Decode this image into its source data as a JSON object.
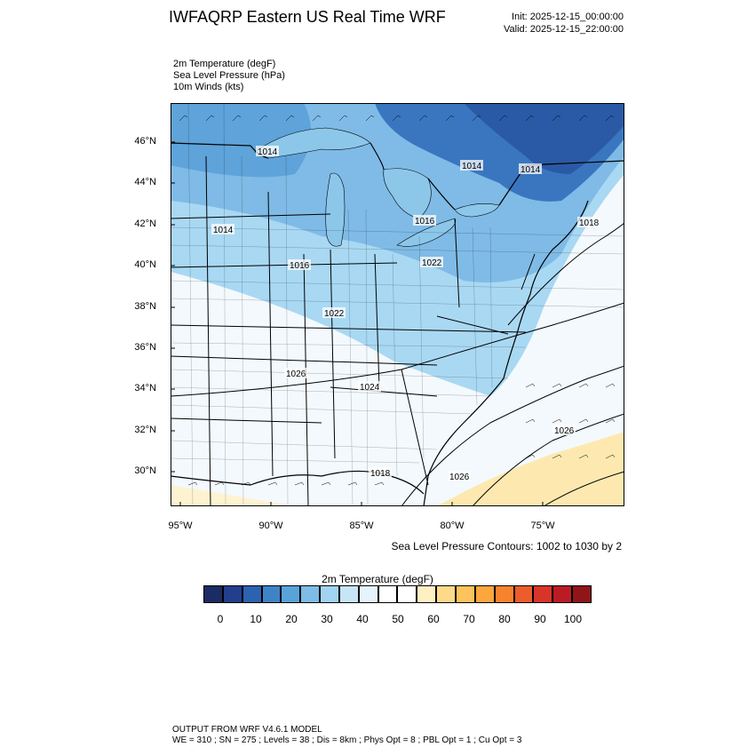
{
  "header": {
    "title": "IWFAQRP Eastern US Real Time WRF",
    "init": "Init: 2025-12-15_00:00:00",
    "valid": "Valid: 2025-12-15_22:00:00"
  },
  "fields": [
    "2m Temperature   (degF)",
    "Sea Level Pressure   (hPa)",
    "10m Winds   (kts)"
  ],
  "map": {
    "lat_labels": [
      "46°N",
      "44°N",
      "42°N",
      "40°N",
      "38°N",
      "36°N",
      "34°N",
      "32°N",
      "30°N"
    ],
    "lon_labels": [
      "95°W",
      "90°W",
      "85°W",
      "80°W",
      "75°W"
    ],
    "pressure_labels": [
      "1014",
      "1014",
      "1014",
      "1014",
      "1016",
      "1016",
      "1018",
      "1018",
      "1022",
      "1022",
      "1024",
      "1026",
      "1026",
      "1026"
    ],
    "colors": {
      "cold": "#3a76c0",
      "cool": "#9fd2f1",
      "mild": "#eaf5fb",
      "warm": "#fde9b0",
      "water": "#8cc7ea"
    }
  },
  "contour_note": "Sea Level Pressure Contours: 1002 to 1030 by 2",
  "colorbar": {
    "title": "2m Temperature  (degF)",
    "colors": [
      "#1b2b63",
      "#233f8c",
      "#2c62b0",
      "#3f83c7",
      "#5aa3d8",
      "#7dbce6",
      "#a2d3f2",
      "#c6e5f7",
      "#e4f3fc",
      "#ffffff",
      "#ffffff",
      "#fff0c2",
      "#fed98a",
      "#fdc35c",
      "#fca63e",
      "#f7832f",
      "#ec5c2c",
      "#d9342a",
      "#bb1c24",
      "#8f1518"
    ],
    "ticks": [
      "0",
      "10",
      "20",
      "30",
      "40",
      "50",
      "60",
      "70",
      "80",
      "90",
      "100"
    ]
  },
  "footer": [
    "OUTPUT FROM WRF V4.6.1 MODEL",
    "WE = 310 ; SN = 275 ; Levels = 38 ; Dis = 8km ; Phys Opt = 8 ; PBL Opt = 1 ; Cu Opt = 3"
  ]
}
